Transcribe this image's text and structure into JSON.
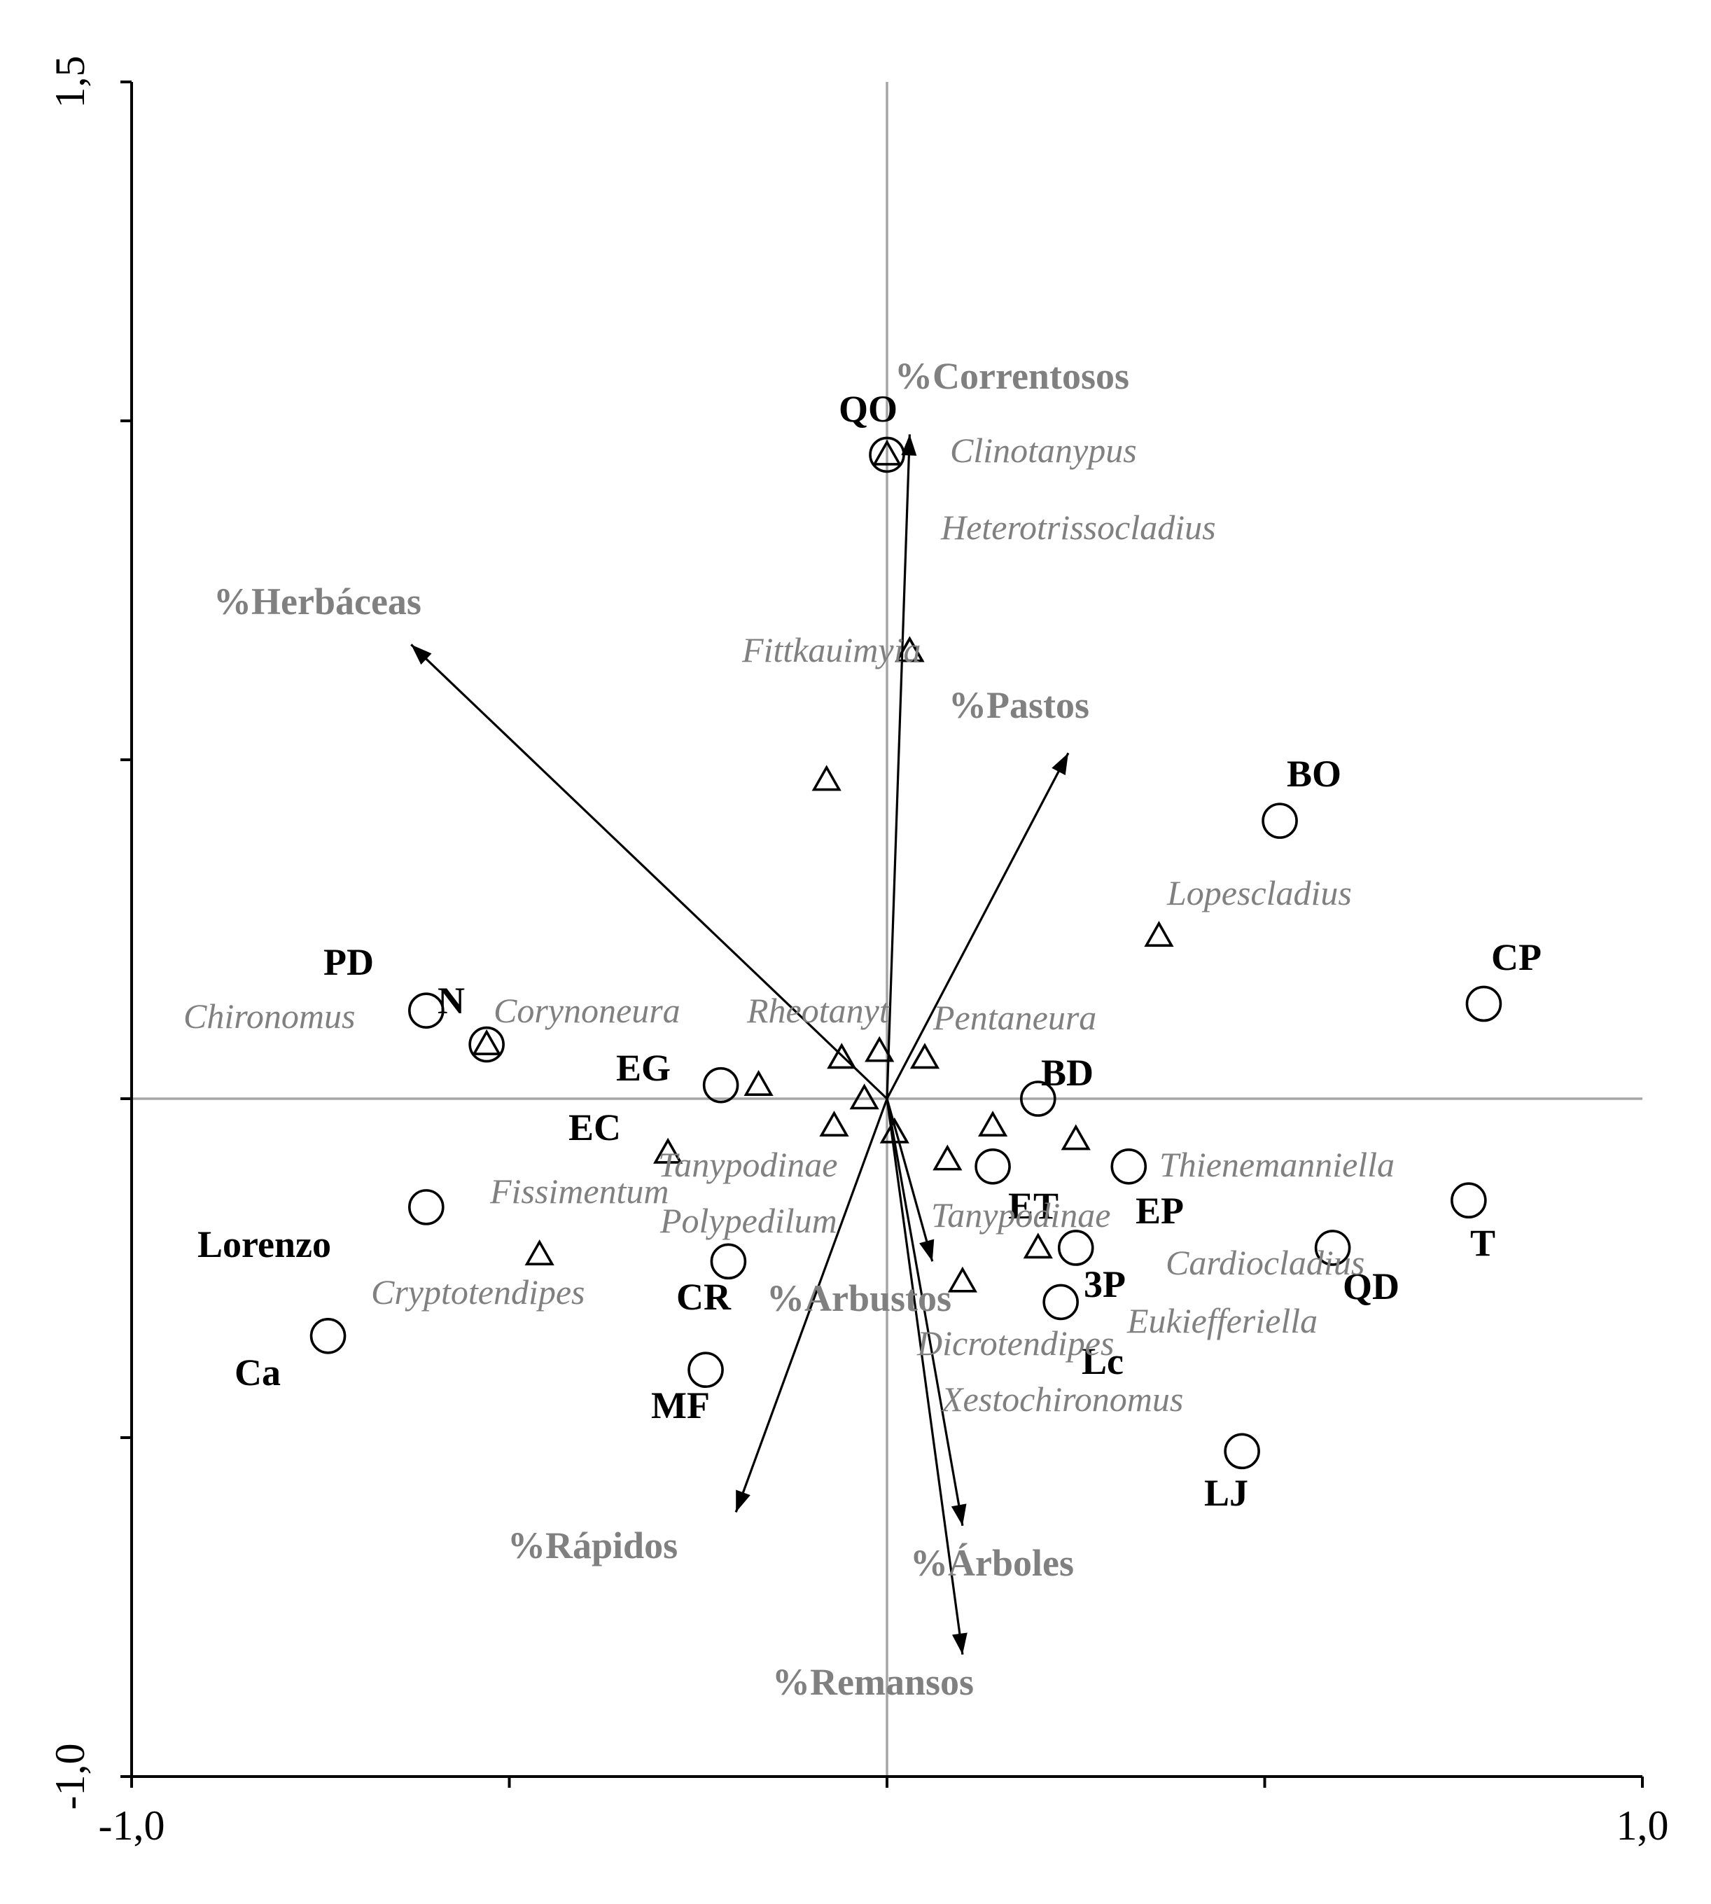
{
  "chart_data": {
    "type": "scatter",
    "title": "",
    "xlabel": "",
    "ylabel": "",
    "xlim": [
      -1.0,
      1.0
    ],
    "ylim": [
      -1.0,
      1.5
    ],
    "x_tick_labels": [
      "-1,0",
      "1,0"
    ],
    "y_tick_labels": [
      "1,5",
      "-1,0"
    ],
    "x_ticks": [
      -1.0,
      -0.5,
      0,
      0.5,
      1.0
    ],
    "y_ticks": [
      -1.0,
      -0.5,
      0,
      0.5,
      1.0,
      1.5
    ],
    "zero_lines": true,
    "sites": [
      {
        "label": "QO",
        "x": 0.0,
        "y": 0.95
      },
      {
        "label": "BO",
        "x": 0.52,
        "y": 0.41
      },
      {
        "label": "CP",
        "x": 0.79,
        "y": 0.14
      },
      {
        "label": "PD",
        "x": -0.61,
        "y": 0.13
      },
      {
        "label": "N",
        "x": -0.53,
        "y": 0.08
      },
      {
        "label": "EG",
        "x": -0.22,
        "y": 0.02
      },
      {
        "label": "BD",
        "x": 0.2,
        "y": 0.0
      },
      {
        "label": "T",
        "x": 0.77,
        "y": -0.15
      },
      {
        "label": "ET",
        "x": 0.14,
        "y": -0.1
      },
      {
        "label": "EP",
        "x": 0.32,
        "y": -0.1
      },
      {
        "label": "QD",
        "x": 0.59,
        "y": -0.22
      },
      {
        "label": "",
        "x": -0.61,
        "y": -0.16
      },
      {
        "label": "",
        "x": 0.25,
        "y": -0.22
      },
      {
        "label": "CR",
        "x": -0.21,
        "y": -0.24
      },
      {
        "label": "3P",
        "x": 0.23,
        "y": -0.3
      },
      {
        "label": "Ca",
        "x": -0.74,
        "y": -0.35
      },
      {
        "label": "MF",
        "x": -0.24,
        "y": -0.4
      },
      {
        "label": "LJ",
        "x": 0.47,
        "y": -0.52
      }
    ],
    "site_labels_extra": [
      "Lorenzo",
      "EC",
      "Lc"
    ],
    "species": [
      {
        "label": "Clinotanypus",
        "x": 0.0,
        "y": 0.95
      },
      {
        "label": "Heterotrissocladius",
        "x": 0.03,
        "y": 0.66
      },
      {
        "label": "Fittkauimyia",
        "x": 0.03,
        "y": 0.66
      },
      {
        "label": "",
        "x": -0.08,
        "y": 0.47
      },
      {
        "label": "Lopescladius",
        "x": 0.36,
        "y": 0.24
      },
      {
        "label": "Chironomus",
        "x": -0.53,
        "y": 0.08
      },
      {
        "label": "Corynoneura",
        "x": -0.17,
        "y": 0.02
      },
      {
        "label": "Rheotanyt",
        "x": -0.06,
        "y": 0.06
      },
      {
        "label": "",
        "x": -0.01,
        "y": 0.07
      },
      {
        "label": "Pentaneura",
        "x": 0.05,
        "y": 0.06
      },
      {
        "label": "",
        "x": -0.03,
        "y": 0.0
      },
      {
        "label": "",
        "x": -0.07,
        "y": -0.04
      },
      {
        "label": "",
        "x": 0.01,
        "y": -0.05
      },
      {
        "label": "Fissimentum",
        "x": -0.29,
        "y": -0.08
      },
      {
        "label": "Tanypodinae",
        "x": 0.08,
        "y": -0.09
      },
      {
        "label": "",
        "x": 0.14,
        "y": -0.04
      },
      {
        "label": "",
        "x": 0.25,
        "y": -0.06
      },
      {
        "label": "Cryptotendipes",
        "x": -0.46,
        "y": -0.23
      },
      {
        "label": "Tanypodinae",
        "x": 0.2,
        "y": -0.22
      },
      {
        "label": "",
        "x": 0.1,
        "y": -0.27
      }
    ],
    "species_labels_extra": [
      "Polypedilum",
      "Thienemanniella",
      "Cardiocladius",
      "Eukiefferiella",
      "Dicrotendipes",
      "Xestochironomus"
    ],
    "env_vectors": [
      {
        "label": "%Correntosos",
        "x": 0.03,
        "y": 0.98
      },
      {
        "label": "%Herbáceas",
        "x": -0.63,
        "y": 0.67
      },
      {
        "label": "%Pastos",
        "x": 0.24,
        "y": 0.51
      },
      {
        "label": "%Arbustos",
        "x": 0.06,
        "y": -0.24
      },
      {
        "label": "%Rápidos",
        "x": -0.2,
        "y": -0.61
      },
      {
        "label": "%Árboles",
        "x": 0.1,
        "y": -0.63
      },
      {
        "label": "%Remansos",
        "x": 0.1,
        "y": -0.82
      }
    ]
  }
}
